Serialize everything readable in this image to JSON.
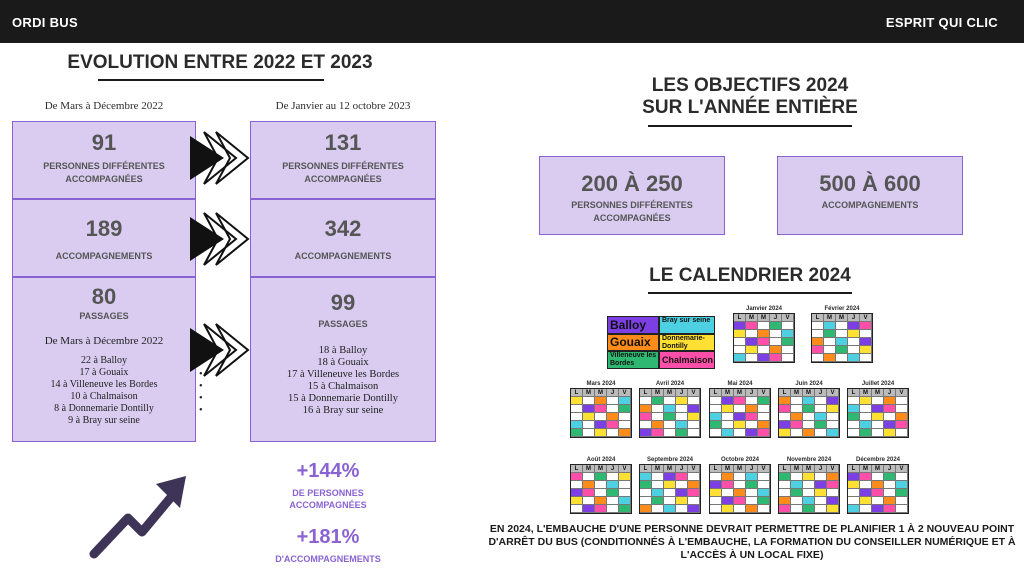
{
  "header": {
    "left": "ORDI BUS",
    "right": "ESPRIT QUI CLIC"
  },
  "evolution": {
    "title": "EVOLUTION ENTRE 2022 ET 2023",
    "left_period": "De Mars à Décembre 2022",
    "right_period": "De Janvier au 12 octobre 2023",
    "rows": [
      {
        "left_value": "91",
        "left_label_1": "PERSONNES DIFFÉRENTES",
        "left_label_2": "ACCOMPAGNÉES",
        "right_value": "131",
        "right_label_1": "PERSONNES DIFFÉRENTES",
        "right_label_2": "ACCOMPAGNÉES"
      },
      {
        "left_value": "189",
        "left_label_1": "ACCOMPAGNEMENTS",
        "left_label_2": "",
        "right_value": "342",
        "right_label_1": "ACCOMPAGNEMENTS",
        "right_label_2": ""
      },
      {
        "left_value": "80",
        "left_label_1": "PASSAGES",
        "left_sub": "De Mars à Décembre 2022",
        "left_items": [
          "22 à Balloy",
          "17 à Gouaix",
          "14 à Villeneuve les Bordes",
          "10 à Chalmaison",
          "8 à Donnemarie Dontilly",
          "9 à Bray sur seine"
        ],
        "right_value": "99",
        "right_label_1": "PASSAGES",
        "right_items": [
          "18 à Balloy",
          "18 à Gouaix",
          "17 à Villeneuve les Bordes",
          "15 à Chalmaison",
          "15 à Donnemarie Dontilly",
          "16 à Bray sur seine"
        ]
      }
    ],
    "pct1_value": "+144%",
    "pct1_l1": "DE PERSONNES",
    "pct1_l2": "ACCOMPAGNÉES",
    "pct2_value": "+181%",
    "pct2_l1": "D'ACCOMPAGNEMENTS"
  },
  "objectifs": {
    "title_1": "LES OBJECTIFS 2024",
    "title_2": "SUR L'ANNÉE ENTIÈRE",
    "box1_value": "200 À 250",
    "box1_l1": "PERSONNES DIFFÉRENTES",
    "box1_l2": "ACCOMPAGNÉES",
    "box2_value": "500 À 600",
    "box2_l1": "ACCOMPAGNEMENTS"
  },
  "calendar": {
    "title": "LE CALENDRIER 2024",
    "legend": [
      {
        "label": "Balloy",
        "color": "#7b3fe4"
      },
      {
        "label": "Bray sur seine",
        "color": "#4dd0e1"
      },
      {
        "label": "Gouaix",
        "color": "#ff8c1a"
      },
      {
        "label": "Donnemarie-Dontilly",
        "color": "#ffe033"
      },
      {
        "label": "Villeneuve les Bordes",
        "color": "#2eb872"
      },
      {
        "label": "Chalmaison",
        "color": "#ff4fa8"
      }
    ],
    "day_headers": [
      "L",
      "M",
      "M",
      "J",
      "V"
    ],
    "months": [
      {
        "name": "Janvier 2024"
      },
      {
        "name": "Février 2024"
      },
      {
        "name": "Mars 2024"
      },
      {
        "name": "Avril 2024"
      },
      {
        "name": "Mai 2024"
      },
      {
        "name": "Juin 2024"
      },
      {
        "name": "Juillet 2024"
      },
      {
        "name": "Août 2024"
      },
      {
        "name": "Septembre 2024"
      },
      {
        "name": "Octobre 2024"
      },
      {
        "name": "Novembre 2024"
      },
      {
        "name": "Décembre 2024"
      }
    ],
    "note": "EN 2024, L'EMBAUCHE D'UNE PERSONNE DEVRAIT PERMETTRE DE PLANIFIER 1 À 2 NOUVEAU POINT D'ARRÊT DU BUS (CONDITIONNÉS À L'EMBAUCHE, LA FORMATION DU CONSEILLER NUMÉRIQUE ET À L'ACCÈS À UN LOCAL FIXE)"
  }
}
